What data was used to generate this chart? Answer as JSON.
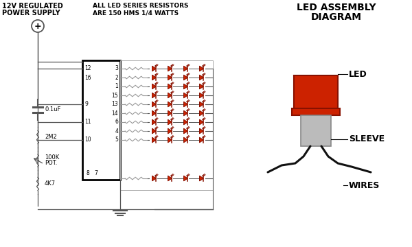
{
  "bg_color": "#ffffff",
  "text_color": "#000000",
  "circuit_color": "#555555",
  "led_color": "#cc2200",
  "led_dark": "#881100",
  "led_fill": "#dd3311",
  "sleeve_color": "#bbbbbb",
  "sleeve_edge": "#888888",
  "wire_color": "#111111",
  "ic_edge": "#000000",
  "title_left_1": "12V REGULATED",
  "title_left_2": "POWER SUPPLY",
  "resistor_note_1": "ALL LED SERIES RESISTORS",
  "resistor_note_2": "ARE 150 HMS 1/4 WATTS",
  "led_asm_title_1": "LED ASSEMBLY",
  "led_asm_title_2": "DIAGRAM",
  "label_led": "LED",
  "label_sleeve": "SLEEVE",
  "label_wires": "WIRES",
  "comp_labels": [
    "0.1uF",
    "2M2",
    "100K",
    "POT.",
    "4K7"
  ],
  "ic_left_pins": [
    [
      "12",
      "16"
    ],
    [
      "9"
    ],
    [
      "11"
    ],
    [
      "10"
    ]
  ],
  "ic_right_pins_top": [
    "3",
    "2",
    "1",
    "15",
    "13",
    "14",
    "6",
    "4",
    "5"
  ],
  "ic_bottom_pins": [
    "8",
    "7"
  ]
}
